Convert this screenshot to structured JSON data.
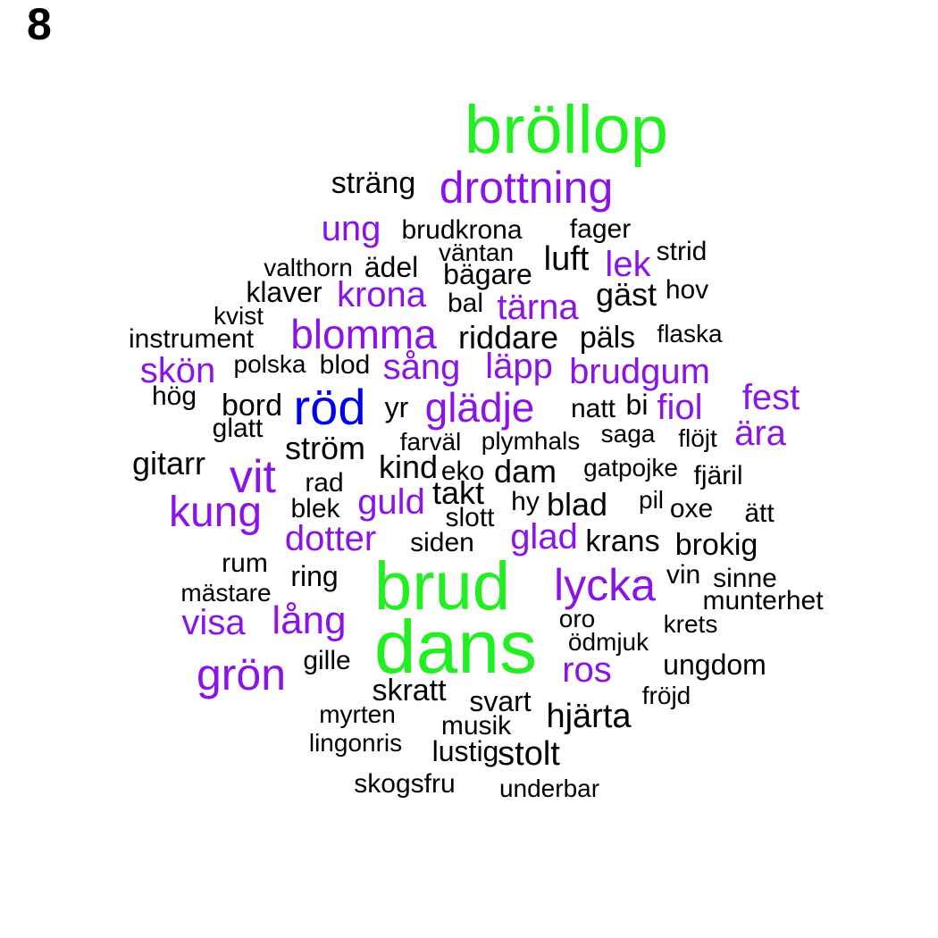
{
  "label": "8",
  "colors": {
    "green": "#22ee22",
    "purple": "#8a14e8",
    "blue": "#0000ee",
    "black": "#000000"
  },
  "words": [
    {
      "text": "bröllop",
      "color": "green"
    },
    {
      "text": "drottning",
      "color": "purple"
    },
    {
      "text": "sträng",
      "color": "black"
    },
    {
      "text": "ung",
      "color": "purple"
    },
    {
      "text": "brudkrona",
      "color": "black"
    },
    {
      "text": "fager",
      "color": "black"
    },
    {
      "text": "väntan",
      "color": "black"
    },
    {
      "text": "luft",
      "color": "black"
    },
    {
      "text": "lek",
      "color": "purple"
    },
    {
      "text": "strid",
      "color": "black"
    },
    {
      "text": "valthorn",
      "color": "black"
    },
    {
      "text": "ädel",
      "color": "black"
    },
    {
      "text": "bägare",
      "color": "black"
    },
    {
      "text": "klaver",
      "color": "black"
    },
    {
      "text": "krona",
      "color": "purple"
    },
    {
      "text": "gäst",
      "color": "black"
    },
    {
      "text": "hov",
      "color": "black"
    },
    {
      "text": "bal",
      "color": "black"
    },
    {
      "text": "tärna",
      "color": "purple"
    },
    {
      "text": "kvist",
      "color": "black"
    },
    {
      "text": "instrument",
      "color": "black"
    },
    {
      "text": "blomma",
      "color": "purple"
    },
    {
      "text": "riddare",
      "color": "black"
    },
    {
      "text": "päls",
      "color": "black"
    },
    {
      "text": "flaska",
      "color": "black"
    },
    {
      "text": "skön",
      "color": "purple"
    },
    {
      "text": "polska",
      "color": "black"
    },
    {
      "text": "blod",
      "color": "black"
    },
    {
      "text": "sång",
      "color": "purple"
    },
    {
      "text": "läpp",
      "color": "purple"
    },
    {
      "text": "brudgum",
      "color": "purple"
    },
    {
      "text": "hög",
      "color": "black"
    },
    {
      "text": "bord",
      "color": "black"
    },
    {
      "text": "röd",
      "color": "blue"
    },
    {
      "text": "yr",
      "color": "black"
    },
    {
      "text": "glädje",
      "color": "purple"
    },
    {
      "text": "natt",
      "color": "black"
    },
    {
      "text": "bi",
      "color": "black"
    },
    {
      "text": "fiol",
      "color": "purple"
    },
    {
      "text": "fest",
      "color": "purple"
    },
    {
      "text": "glatt",
      "color": "black"
    },
    {
      "text": "ära",
      "color": "purple"
    },
    {
      "text": "ström",
      "color": "black"
    },
    {
      "text": "farväl",
      "color": "black"
    },
    {
      "text": "plymhals",
      "color": "black"
    },
    {
      "text": "saga",
      "color": "black"
    },
    {
      "text": "flöjt",
      "color": "black"
    },
    {
      "text": "gitarr",
      "color": "black"
    },
    {
      "text": "vit",
      "color": "purple"
    },
    {
      "text": "kind",
      "color": "black"
    },
    {
      "text": "eko",
      "color": "black"
    },
    {
      "text": "dam",
      "color": "black"
    },
    {
      "text": "gatpojke",
      "color": "black"
    },
    {
      "text": "fjäril",
      "color": "black"
    },
    {
      "text": "rad",
      "color": "black"
    },
    {
      "text": "takt",
      "color": "black"
    },
    {
      "text": "guld",
      "color": "purple"
    },
    {
      "text": "kung",
      "color": "purple"
    },
    {
      "text": "hy",
      "color": "black"
    },
    {
      "text": "blad",
      "color": "black"
    },
    {
      "text": "pil",
      "color": "black"
    },
    {
      "text": "oxe",
      "color": "black"
    },
    {
      "text": "ätt",
      "color": "black"
    },
    {
      "text": "blek",
      "color": "black"
    },
    {
      "text": "slott",
      "color": "black"
    },
    {
      "text": "dotter",
      "color": "purple"
    },
    {
      "text": "glad",
      "color": "purple"
    },
    {
      "text": "siden",
      "color": "black"
    },
    {
      "text": "krans",
      "color": "black"
    },
    {
      "text": "brokig",
      "color": "black"
    },
    {
      "text": "rum",
      "color": "black"
    },
    {
      "text": "brud",
      "color": "green"
    },
    {
      "text": "ring",
      "color": "black"
    },
    {
      "text": "lycka",
      "color": "purple"
    },
    {
      "text": "vin",
      "color": "black"
    },
    {
      "text": "sinne",
      "color": "black"
    },
    {
      "text": "mästare",
      "color": "black"
    },
    {
      "text": "munterhet",
      "color": "black"
    },
    {
      "text": "visa",
      "color": "purple"
    },
    {
      "text": "lång",
      "color": "purple"
    },
    {
      "text": "oro",
      "color": "black"
    },
    {
      "text": "krets",
      "color": "black"
    },
    {
      "text": "dans",
      "color": "green"
    },
    {
      "text": "ödmjuk",
      "color": "black"
    },
    {
      "text": "grön",
      "color": "purple"
    },
    {
      "text": "gille",
      "color": "black"
    },
    {
      "text": "ros",
      "color": "purple"
    },
    {
      "text": "ungdom",
      "color": "black"
    },
    {
      "text": "skratt",
      "color": "black"
    },
    {
      "text": "fröjd",
      "color": "black"
    },
    {
      "text": "svart",
      "color": "black"
    },
    {
      "text": "myrten",
      "color": "black"
    },
    {
      "text": "hjärta",
      "color": "black"
    },
    {
      "text": "musik",
      "color": "black"
    },
    {
      "text": "lingonris",
      "color": "black"
    },
    {
      "text": "lustig",
      "color": "black"
    },
    {
      "text": "stolt",
      "color": "black"
    },
    {
      "text": "skogsfru",
      "color": "black"
    },
    {
      "text": "underbar",
      "color": "black"
    }
  ]
}
